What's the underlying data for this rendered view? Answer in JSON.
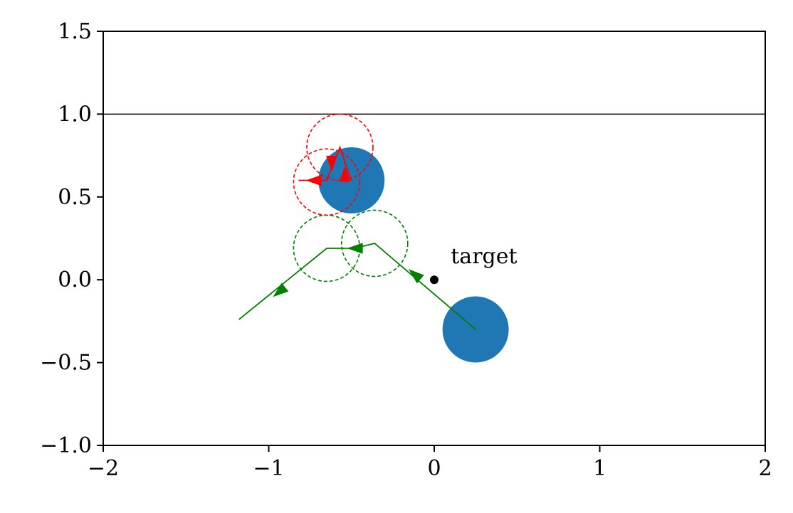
{
  "chart_data": {
    "type": "scatter",
    "title": "",
    "xlabel": "",
    "ylabel": "",
    "xlim": [
      -2,
      2
    ],
    "ylim": [
      -1,
      1.5
    ],
    "x_ticks": [
      -2,
      -1,
      0,
      1,
      2
    ],
    "y_ticks": [
      -1.0,
      -0.5,
      0.0,
      0.5,
      1.0,
      1.5
    ],
    "x_tick_labels": [
      "−2",
      "−1",
      "0",
      "1",
      "2"
    ],
    "y_tick_labels": [
      "−1.0",
      "−0.5",
      "0.0",
      "0.5",
      "1.0",
      "1.5"
    ],
    "grid": false,
    "colors": {
      "obstacle": "#1f77b4",
      "green_path": "#008000",
      "red_path": "#ff0000",
      "line": "#000000"
    },
    "horizontal_line": {
      "y": 1.0
    },
    "target": {
      "x": 0.0,
      "y": 0.0,
      "label": "target",
      "label_x": 0.1,
      "label_y": 0.1
    },
    "obstacles": [
      {
        "x": 0.25,
        "y": -0.3,
        "r": 0.2
      },
      {
        "x": -0.5,
        "y": 0.6,
        "r": 0.2
      }
    ],
    "green_trajectory": [
      {
        "x": 0.25,
        "y": -0.3
      },
      {
        "x": -0.36,
        "y": 0.22
      },
      {
        "x": -0.48,
        "y": 0.19
      },
      {
        "x": -0.65,
        "y": 0.19
      },
      {
        "x": -1.18,
        "y": -0.24
      }
    ],
    "green_arrows": [
      {
        "x": -0.15,
        "y": 0.06,
        "dx": -0.02,
        "dy": 0.017
      },
      {
        "x": -0.52,
        "y": 0.19,
        "dx": -0.02,
        "dy": 0.0
      },
      {
        "x": -0.97,
        "y": -0.1,
        "dx": -0.02,
        "dy": -0.016
      }
    ],
    "green_circles": [
      {
        "x": -0.36,
        "y": 0.22,
        "r": 0.2
      },
      {
        "x": -0.65,
        "y": 0.19,
        "r": 0.2
      }
    ],
    "red_trajectory": [
      {
        "x": -0.5,
        "y": 0.6
      },
      {
        "x": -0.52,
        "y": 0.65
      },
      {
        "x": -0.57,
        "y": 0.8
      },
      {
        "x": -0.63,
        "y": 0.65
      },
      {
        "x": -0.65,
        "y": 0.6
      },
      {
        "x": -0.82,
        "y": 0.6
      }
    ],
    "red_arrows": [
      {
        "x": -0.54,
        "y": 0.68,
        "dx": 0.0,
        "dy": 0.02
      },
      {
        "x": -0.62,
        "y": 0.66,
        "dx": 0.0,
        "dy": -0.02
      },
      {
        "x": -0.77,
        "y": 0.6,
        "dx": -0.02,
        "dy": 0.0
      }
    ],
    "red_circles": [
      {
        "x": -0.57,
        "y": 0.8,
        "r": 0.2
      },
      {
        "x": -0.65,
        "y": 0.59,
        "r": 0.2
      }
    ]
  }
}
